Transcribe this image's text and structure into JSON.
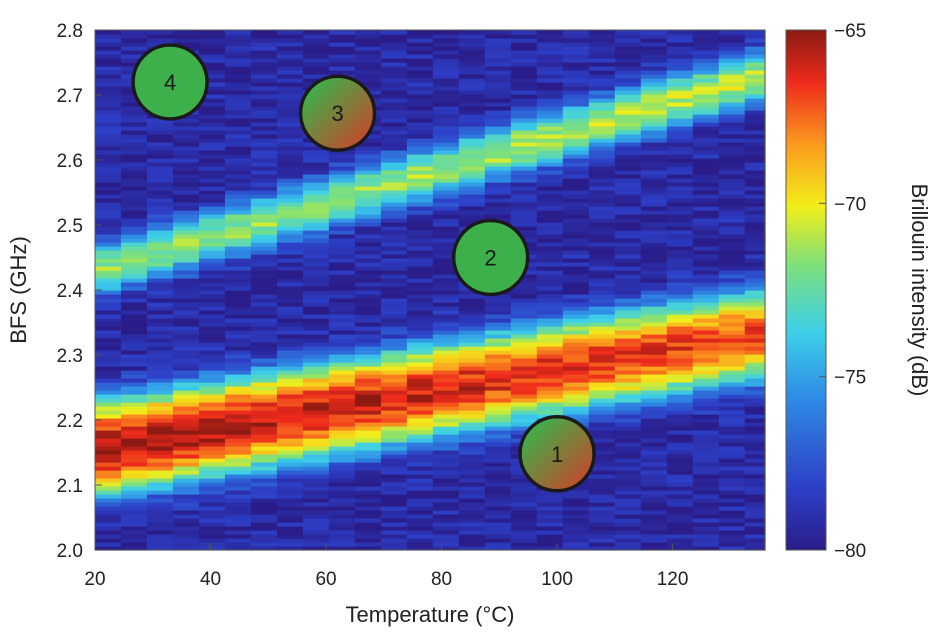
{
  "chart_data": {
    "type": "heatmap",
    "title": "",
    "xlabel": "Temperature (°C)",
    "ylabel": "BFS (GHz)",
    "colorbar_label": "Brillouin intensity (dB)",
    "xlim": [
      20,
      136
    ],
    "ylim": [
      2.0,
      2.8
    ],
    "x_ticks": [
      "20",
      "40",
      "60",
      "80",
      "100",
      "120"
    ],
    "y_ticks": [
      "2.0",
      "2.1",
      "2.2",
      "2.3",
      "2.4",
      "2.5",
      "2.6",
      "2.7",
      "2.8"
    ],
    "colorbar_range": [
      -80,
      -65
    ],
    "colorbar_ticks": [
      "−65",
      "−70",
      "−75",
      "−80"
    ],
    "colormap": "jet",
    "grid": false,
    "temperature_samples": [
      20,
      24.5,
      29,
      33.5,
      38,
      42.5,
      47,
      51.5,
      56,
      60.5,
      65,
      69.5,
      74,
      78.5,
      83,
      87.5,
      92,
      96.5,
      101,
      105.5,
      110,
      114.5,
      119,
      123.5,
      128,
      132.5,
      136
    ],
    "series": [
      {
        "intercept_ghz": 2.155,
        "slope_ghz_per_c": 0.00155,
        "peak_db": -65.2,
        "peak_db_slope_per_c": -0.018,
        "linewidth_ghz": 0.034
      },
      {
        "intercept_ghz": 2.43,
        "slope_ghz_per_c": 0.0026,
        "peak_db": -72.5,
        "peak_db_slope_per_c": 0.01,
        "linewidth_ghz": 0.022
      }
    ],
    "noise_floor_db": -79.3,
    "markers": [
      {
        "label": "1",
        "x": 100,
        "y": 2.148,
        "fill": "gradient"
      },
      {
        "label": "2",
        "x": 88.5,
        "y": 2.45,
        "fill": "green"
      },
      {
        "label": "3",
        "x": 62,
        "y": 2.672,
        "fill": "gradient"
      },
      {
        "label": "4",
        "x": 33,
        "y": 2.72,
        "fill": "green"
      }
    ],
    "colors": {
      "marker_green": "#3db04b",
      "marker_red": "#c8462a",
      "marker_outline": "#1a1a1a"
    }
  }
}
